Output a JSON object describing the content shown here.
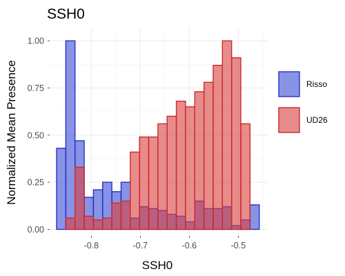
{
  "chart_data": {
    "type": "bar",
    "title": "SSH0",
    "xlabel": "SSH0",
    "ylabel": "Normalized Mean Presence",
    "xlim": [
      -0.885,
      -0.44
    ],
    "ylim": [
      -0.035,
      1.07
    ],
    "bin_width": 0.0188,
    "bin_centers": [
      -0.8615,
      -0.8427,
      -0.8239,
      -0.8051,
      -0.7863,
      -0.7675,
      -0.7487,
      -0.7299,
      -0.7111,
      -0.6923,
      -0.6735,
      -0.6547,
      -0.6359,
      -0.6171,
      -0.5983,
      -0.5795,
      -0.5607,
      -0.5419,
      -0.5231,
      -0.5043,
      -0.4855,
      -0.4667
    ],
    "x_ticks": [
      -0.8,
      -0.7,
      -0.6,
      -0.5
    ],
    "x_tick_labels": [
      "-0.8",
      "-0.7",
      "-0.6",
      "-0.5"
    ],
    "y_ticks": [
      0.0,
      0.25,
      0.5,
      0.75,
      1.0
    ],
    "y_tick_labels": [
      "0.00",
      "0.25",
      "0.50",
      "0.75",
      "1.00"
    ],
    "grid": true,
    "legend_position": "right",
    "series": [
      {
        "name": "Risso",
        "fill": "#3a4bd6",
        "stroke": "#2330c7",
        "values": [
          0.43,
          1.0,
          0.47,
          0.17,
          0.21,
          0.25,
          0.2,
          0.25,
          0.06,
          0.12,
          0.11,
          0.1,
          0.08,
          0.07,
          0.04,
          0.15,
          0.11,
          0.11,
          0.12,
          0.02,
          0.05,
          0.13
        ]
      },
      {
        "name": "UD26",
        "fill": "#d93d3d",
        "stroke": "#cc2a2a",
        "values": [
          0.0,
          0.06,
          0.33,
          0.07,
          0.05,
          0.06,
          0.14,
          0.15,
          0.41,
          0.49,
          0.49,
          0.56,
          0.6,
          0.68,
          0.65,
          0.73,
          0.78,
          0.87,
          1.0,
          0.91,
          0.56,
          0.0
        ]
      }
    ]
  }
}
